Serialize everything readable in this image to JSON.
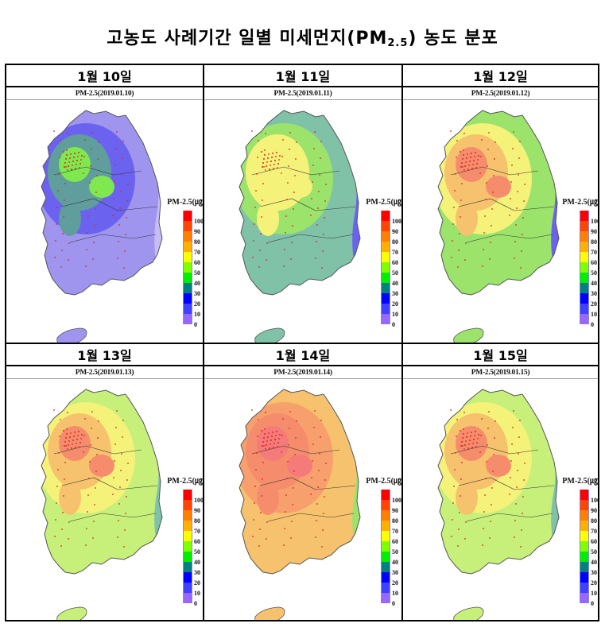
{
  "title": {
    "main": "고농도 사례기간 일별 미세먼지(PM",
    "sub": "2.5",
    "tail": ") 농도 분포"
  },
  "legend": {
    "title": "PM-2.5(㎍",
    "labels": [
      "100",
      "90",
      "80",
      "70",
      "60",
      "50",
      "40",
      "30",
      "20",
      "10",
      "0"
    ],
    "colors": [
      "#ff0000",
      "#ff4500",
      "#ff7f00",
      "#ffb000",
      "#ffff00",
      "#80ff00",
      "#00ee00",
      "#008080",
      "#0000ff",
      "#4040ff",
      "#9966ff"
    ]
  },
  "panels": [
    {
      "label": "1월 10일",
      "subtitle": "PM-2.5(2019.01.10)",
      "level": "low"
    },
    {
      "label": "1월 11일",
      "subtitle": "PM-2.5(2019.01.11)",
      "level": "moderate"
    },
    {
      "label": "1월 12일",
      "subtitle": "PM-2.5(2019.01.12)",
      "level": "elevated"
    },
    {
      "label": "1월 13일",
      "subtitle": "PM-2.5(2019.01.13)",
      "level": "high"
    },
    {
      "label": "1월 14일",
      "subtitle": "PM-2.5(2019.01.14)",
      "level": "very-high"
    },
    {
      "label": "1월 15일",
      "subtitle": "PM-2.5(2019.01.15)",
      "level": "high"
    }
  ],
  "map_colors": {
    "low": {
      "base": "#9f95ee",
      "mid": "#6b63f0",
      "hot": "#5f9e9c",
      "core": "#7fe84f",
      "east": "#c6bdf6"
    },
    "moderate": {
      "base": "#7fc2a8",
      "mid": "#9be36b",
      "hot": "#f5f27a",
      "core": "#f5f27a",
      "east": "#6b63f0"
    },
    "elevated": {
      "base": "#9be36b",
      "mid": "#f5f27a",
      "hot": "#f7c26d",
      "core": "#f58d6d",
      "east": "#6b63f0"
    },
    "high": {
      "base": "#c6f07a",
      "mid": "#f5f27a",
      "hot": "#f7c26d",
      "core": "#f58d6d",
      "east": "#7fc2a8"
    },
    "very-high": {
      "base": "#f7c26d",
      "mid": "#f7a06d",
      "hot": "#f58d6d",
      "core": "#f57a7a",
      "east": "#9be36b"
    }
  }
}
